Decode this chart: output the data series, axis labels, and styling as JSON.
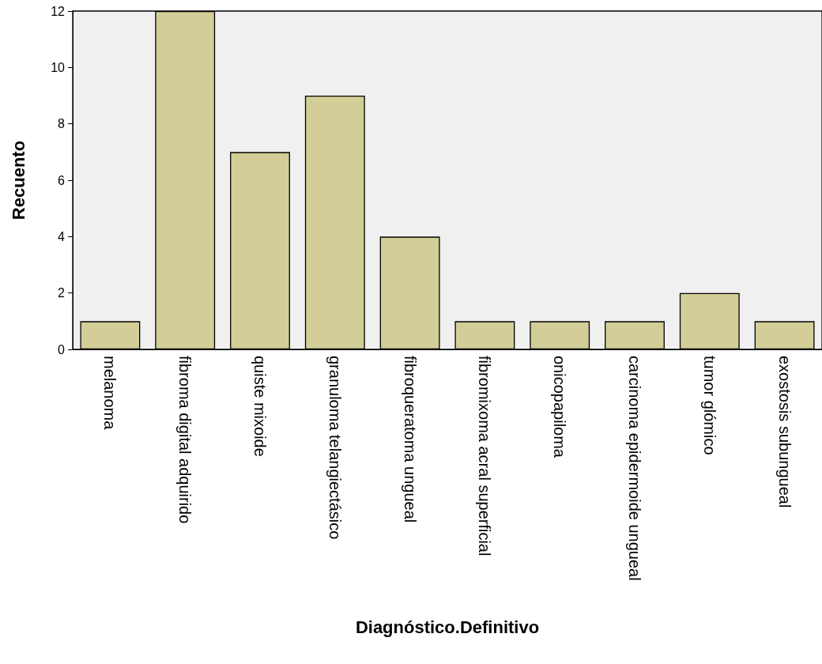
{
  "chart_data": {
    "type": "bar",
    "xlabel": "Diagnóstico.Definitivo",
    "ylabel": "Recuento",
    "categories": [
      "melanoma",
      "fibroma digital adquirido",
      "quiste mixoide",
      "granuloma telangiectásico",
      "fibroqueratoma ungueal",
      "fibromixoma acral superficial",
      "onicopapiloma",
      "carcinoma epidermoide ungueal",
      "tumor glómico",
      "exostosis subungueal"
    ],
    "values": [
      1,
      12,
      7,
      9,
      4,
      1,
      1,
      1,
      2,
      1
    ],
    "color": "#d3ce97",
    "ylim": [
      0,
      12
    ],
    "yticks": [
      0,
      2,
      4,
      6,
      8,
      10,
      12
    ],
    "grid": false
  }
}
